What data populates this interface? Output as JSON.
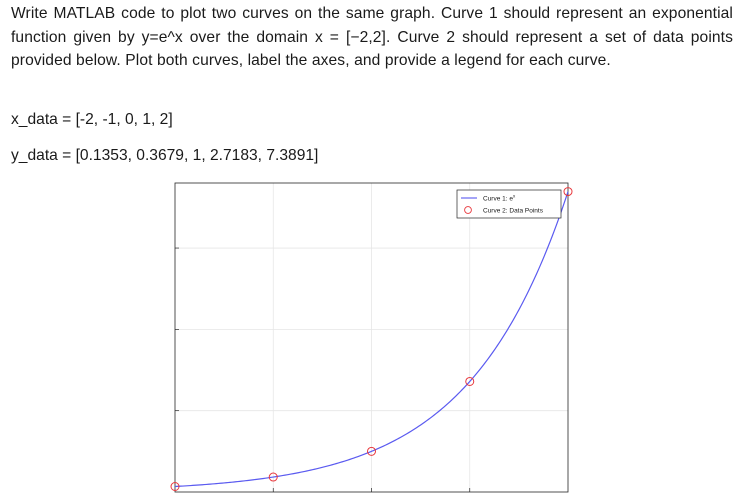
{
  "question": {
    "paragraph": "Write MATLAB code to plot two curves on the same graph. Curve 1 should represent an exponential function given by y=e^x over the domain x = [−2,2]. Curve 2 should represent a set of data points provided below. Plot both curves, label the axes, and provide a legend for each curve.",
    "x_data_line": "x_data = [-2, -1, 0, 1, 2]",
    "y_data_line": "y_data = [0.1353, 0.3679, 1, 2.7183, 7.3891]"
  },
  "chart_data": {
    "type": "line",
    "xlim": [
      -2,
      2
    ],
    "ylim": [
      0,
      7.6
    ],
    "grid": true,
    "legend_placement": "top-right",
    "series": [
      {
        "name": "Curve 1: e^x",
        "kind": "line",
        "function": "exp",
        "x_range": [
          -2,
          2
        ],
        "color": "#5a5af0"
      },
      {
        "name": "Curve 2: Data Points",
        "kind": "markers",
        "marker": "circle",
        "color": "#e8383d",
        "x": [
          -2,
          -1,
          0,
          1,
          2
        ],
        "y": [
          0.1353,
          0.3679,
          1,
          2.7183,
          7.3891
        ]
      }
    ],
    "legend": {
      "curve1_prefix": "Curve 1: e",
      "curve1_sup": "x",
      "curve2": "Curve 2: Data Points"
    }
  }
}
